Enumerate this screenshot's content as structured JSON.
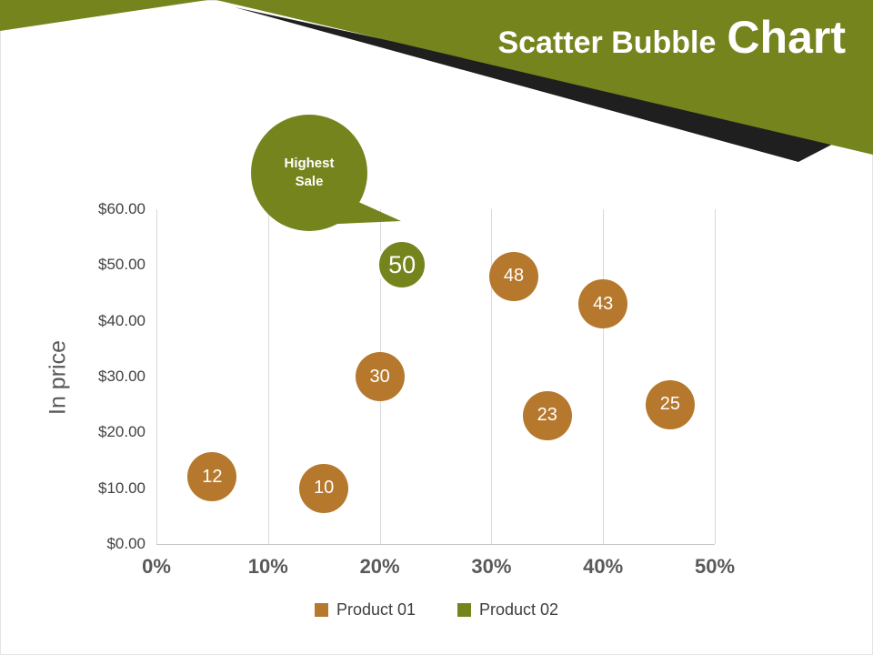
{
  "header": {
    "title_regular": "Scatter Bubble",
    "title_large": "Chart"
  },
  "callout": {
    "line1": "Highest",
    "line2": "Sale"
  },
  "colors": {
    "olive": "#76841e",
    "dark": "#1f1f1f",
    "brown": "#b5782d",
    "grid": "#d9d9d9",
    "axis_text": "#595959",
    "tick_text": "#404040"
  },
  "chart_data": {
    "type": "scatter",
    "title": "Scatter Bubble Chart",
    "xlabel": "",
    "ylabel": "In price",
    "xlim": [
      0,
      50
    ],
    "ylim": [
      0,
      60
    ],
    "grid": "vertical-only",
    "legend_position": "bottom-center",
    "x_ticks": [
      {
        "value": 0,
        "label": "0%"
      },
      {
        "value": 10,
        "label": "10%"
      },
      {
        "value": 20,
        "label": "20%"
      },
      {
        "value": 30,
        "label": "30%"
      },
      {
        "value": 40,
        "label": "40%"
      },
      {
        "value": 50,
        "label": "50%"
      }
    ],
    "y_ticks": [
      {
        "value": 0,
        "label": "$0.00"
      },
      {
        "value": 10,
        "label": "$10.00"
      },
      {
        "value": 20,
        "label": "$20.00"
      },
      {
        "value": 30,
        "label": "$30.00"
      },
      {
        "value": 40,
        "label": "$40.00"
      },
      {
        "value": 50,
        "label": "$50.00"
      },
      {
        "value": 60,
        "label": "$60.00"
      }
    ],
    "series": [
      {
        "name": "Product 01",
        "color": "#b5782d",
        "points": [
          {
            "x": 5,
            "y": 12,
            "label": "12"
          },
          {
            "x": 15,
            "y": 10,
            "label": "10"
          },
          {
            "x": 20,
            "y": 30,
            "label": "30"
          },
          {
            "x": 32,
            "y": 48,
            "label": "48"
          },
          {
            "x": 40,
            "y": 43,
            "label": "43"
          },
          {
            "x": 35,
            "y": 23,
            "label": "23"
          },
          {
            "x": 46,
            "y": 25,
            "label": "25"
          }
        ]
      },
      {
        "name": "Product 02",
        "color": "#76841e",
        "ring": "#ffffff",
        "points": [
          {
            "x": 22,
            "y": 50,
            "label": "50",
            "label_size": 27,
            "r": 28
          }
        ]
      }
    ],
    "annotation": {
      "text": "Highest Sale",
      "points_to": {
        "x": 22,
        "y": 50
      }
    }
  }
}
